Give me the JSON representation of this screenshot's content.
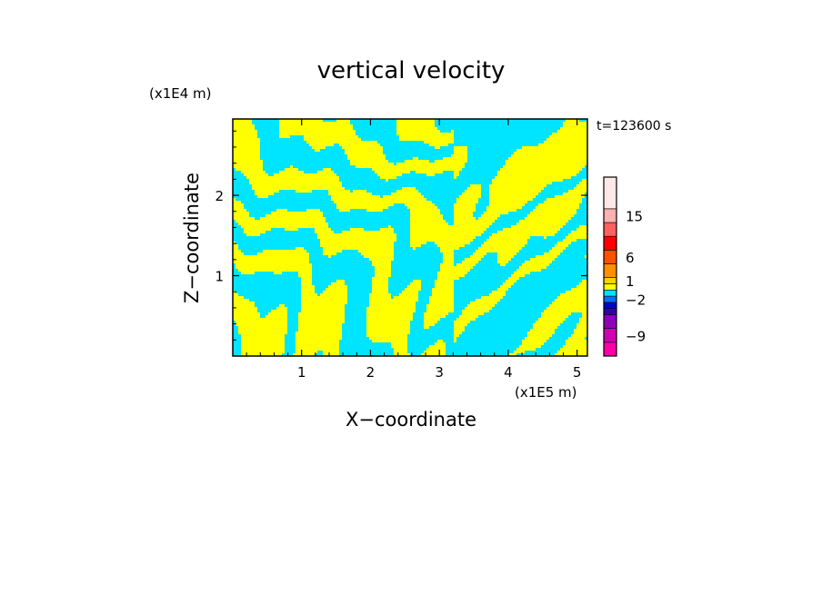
{
  "chart_data": {
    "type": "heatmap",
    "title": "vertical velocity",
    "time_label": "t=123600 s",
    "xlabel": "X−coordinate",
    "ylabel": "Z−coordinate",
    "x_scale_label": "(x1E5 m)",
    "y_scale_label": "(x1E4 m)",
    "xlim": [
      0.0,
      5.15
    ],
    "ylim": [
      0.0,
      2.95
    ],
    "x_ticks": [
      {
        "value": 1,
        "label": "1"
      },
      {
        "value": 2,
        "label": "2"
      },
      {
        "value": 3,
        "label": "3"
      },
      {
        "value": 4,
        "label": "4"
      },
      {
        "value": 5,
        "label": "5"
      }
    ],
    "y_ticks": [
      {
        "value": 1,
        "label": "1"
      },
      {
        "value": 2,
        "label": "2"
      }
    ],
    "field_colors": {
      "positive": "#ffff00",
      "negative": "#00e5ff"
    },
    "colorbar": {
      "levels": [
        {
          "color": "#ff00a8"
        },
        {
          "color": "#d000b0"
        },
        {
          "color": "#9000b8"
        },
        {
          "color": "#3000b0"
        },
        {
          "color": "#0000d0"
        },
        {
          "color": "#0070ff"
        },
        {
          "color": "#00e0ff"
        },
        {
          "color": "#ffff00"
        },
        {
          "color": "#ffd000"
        },
        {
          "color": "#ff9000"
        },
        {
          "color": "#ff5000"
        },
        {
          "color": "#ff0000"
        },
        {
          "color": "#ff6060"
        },
        {
          "color": "#ffb0b0"
        },
        {
          "color": "#ffe8e8"
        }
      ],
      "labels": [
        {
          "text": "15",
          "level_index": 13
        },
        {
          "text": "6",
          "level_index": 10
        },
        {
          "text": "1",
          "level_index": 8
        },
        {
          "text": "−2",
          "level_index": 5
        },
        {
          "text": "−9",
          "level_index": 1
        }
      ]
    }
  }
}
